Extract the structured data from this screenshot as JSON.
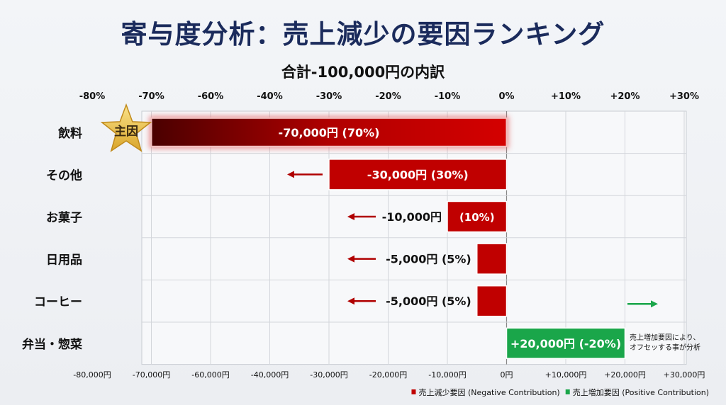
{
  "chart_data": {
    "type": "bar",
    "orientation": "horizontal",
    "title": "寄与度分析：売上減少の要因ランキング",
    "subtitle": "合計-100,000円の内訳",
    "top_axis_ticks": [
      "-80%",
      "-70%",
      "-60%",
      "-40%",
      "-30%",
      "-20%",
      "-10%",
      "0%",
      "+10%",
      "+20%",
      "+30%"
    ],
    "bottom_axis_ticks": [
      "-80,000円",
      "-70,000円",
      "-60,000円",
      "-40,000円",
      "-30,000円",
      "-20,000円",
      "-10,000円",
      "0円",
      "+10,000円",
      "+20,000円",
      "+30,000円"
    ],
    "tick_values": [
      -80000,
      -70000,
      -60000,
      -40000,
      -30000,
      -20000,
      -10000,
      0,
      10000,
      20000,
      30000
    ],
    "xlim": [
      -80000,
      30000
    ],
    "grid": true,
    "categories": [
      "飲料",
      "その他",
      "お菓子",
      "日用品",
      "コーヒー",
      "弁当・惣菜"
    ],
    "values": [
      -70000,
      -30000,
      -10000,
      -5000,
      -5000,
      20000
    ],
    "percent": [
      70,
      30,
      10,
      5,
      5,
      -20
    ],
    "data_labels": [
      {
        "value": "-70,000円 (70%)",
        "inside": true
      },
      {
        "value": "-30,000円 (30%)",
        "inside": true
      },
      {
        "value": "-10,000円",
        "pct": "(10%)",
        "inside": false
      },
      {
        "value": "-5,000円 (5%)",
        "inside": false
      },
      {
        "value": "-5,000円 (5%)",
        "inside": false
      },
      {
        "value": "+20,000円 (-20%)",
        "inside": true
      }
    ],
    "badge": {
      "category": "飲料",
      "text": "主因",
      "icon": "star-icon"
    },
    "annotation": [
      "売上増加要因により、",
      "オフセッする事が分析"
    ],
    "legend": {
      "placement": "bottom-right",
      "entries": [
        {
          "label": "売上減少要因 (Negative Contribution)",
          "color": "#c00000"
        },
        {
          "label": "売上増加要因 (Positive Contribution)",
          "color": "#1aa64a"
        }
      ]
    },
    "colors": {
      "negative": "#c00000",
      "positive": "#1aa64a",
      "title": "#1b2b5c"
    }
  }
}
